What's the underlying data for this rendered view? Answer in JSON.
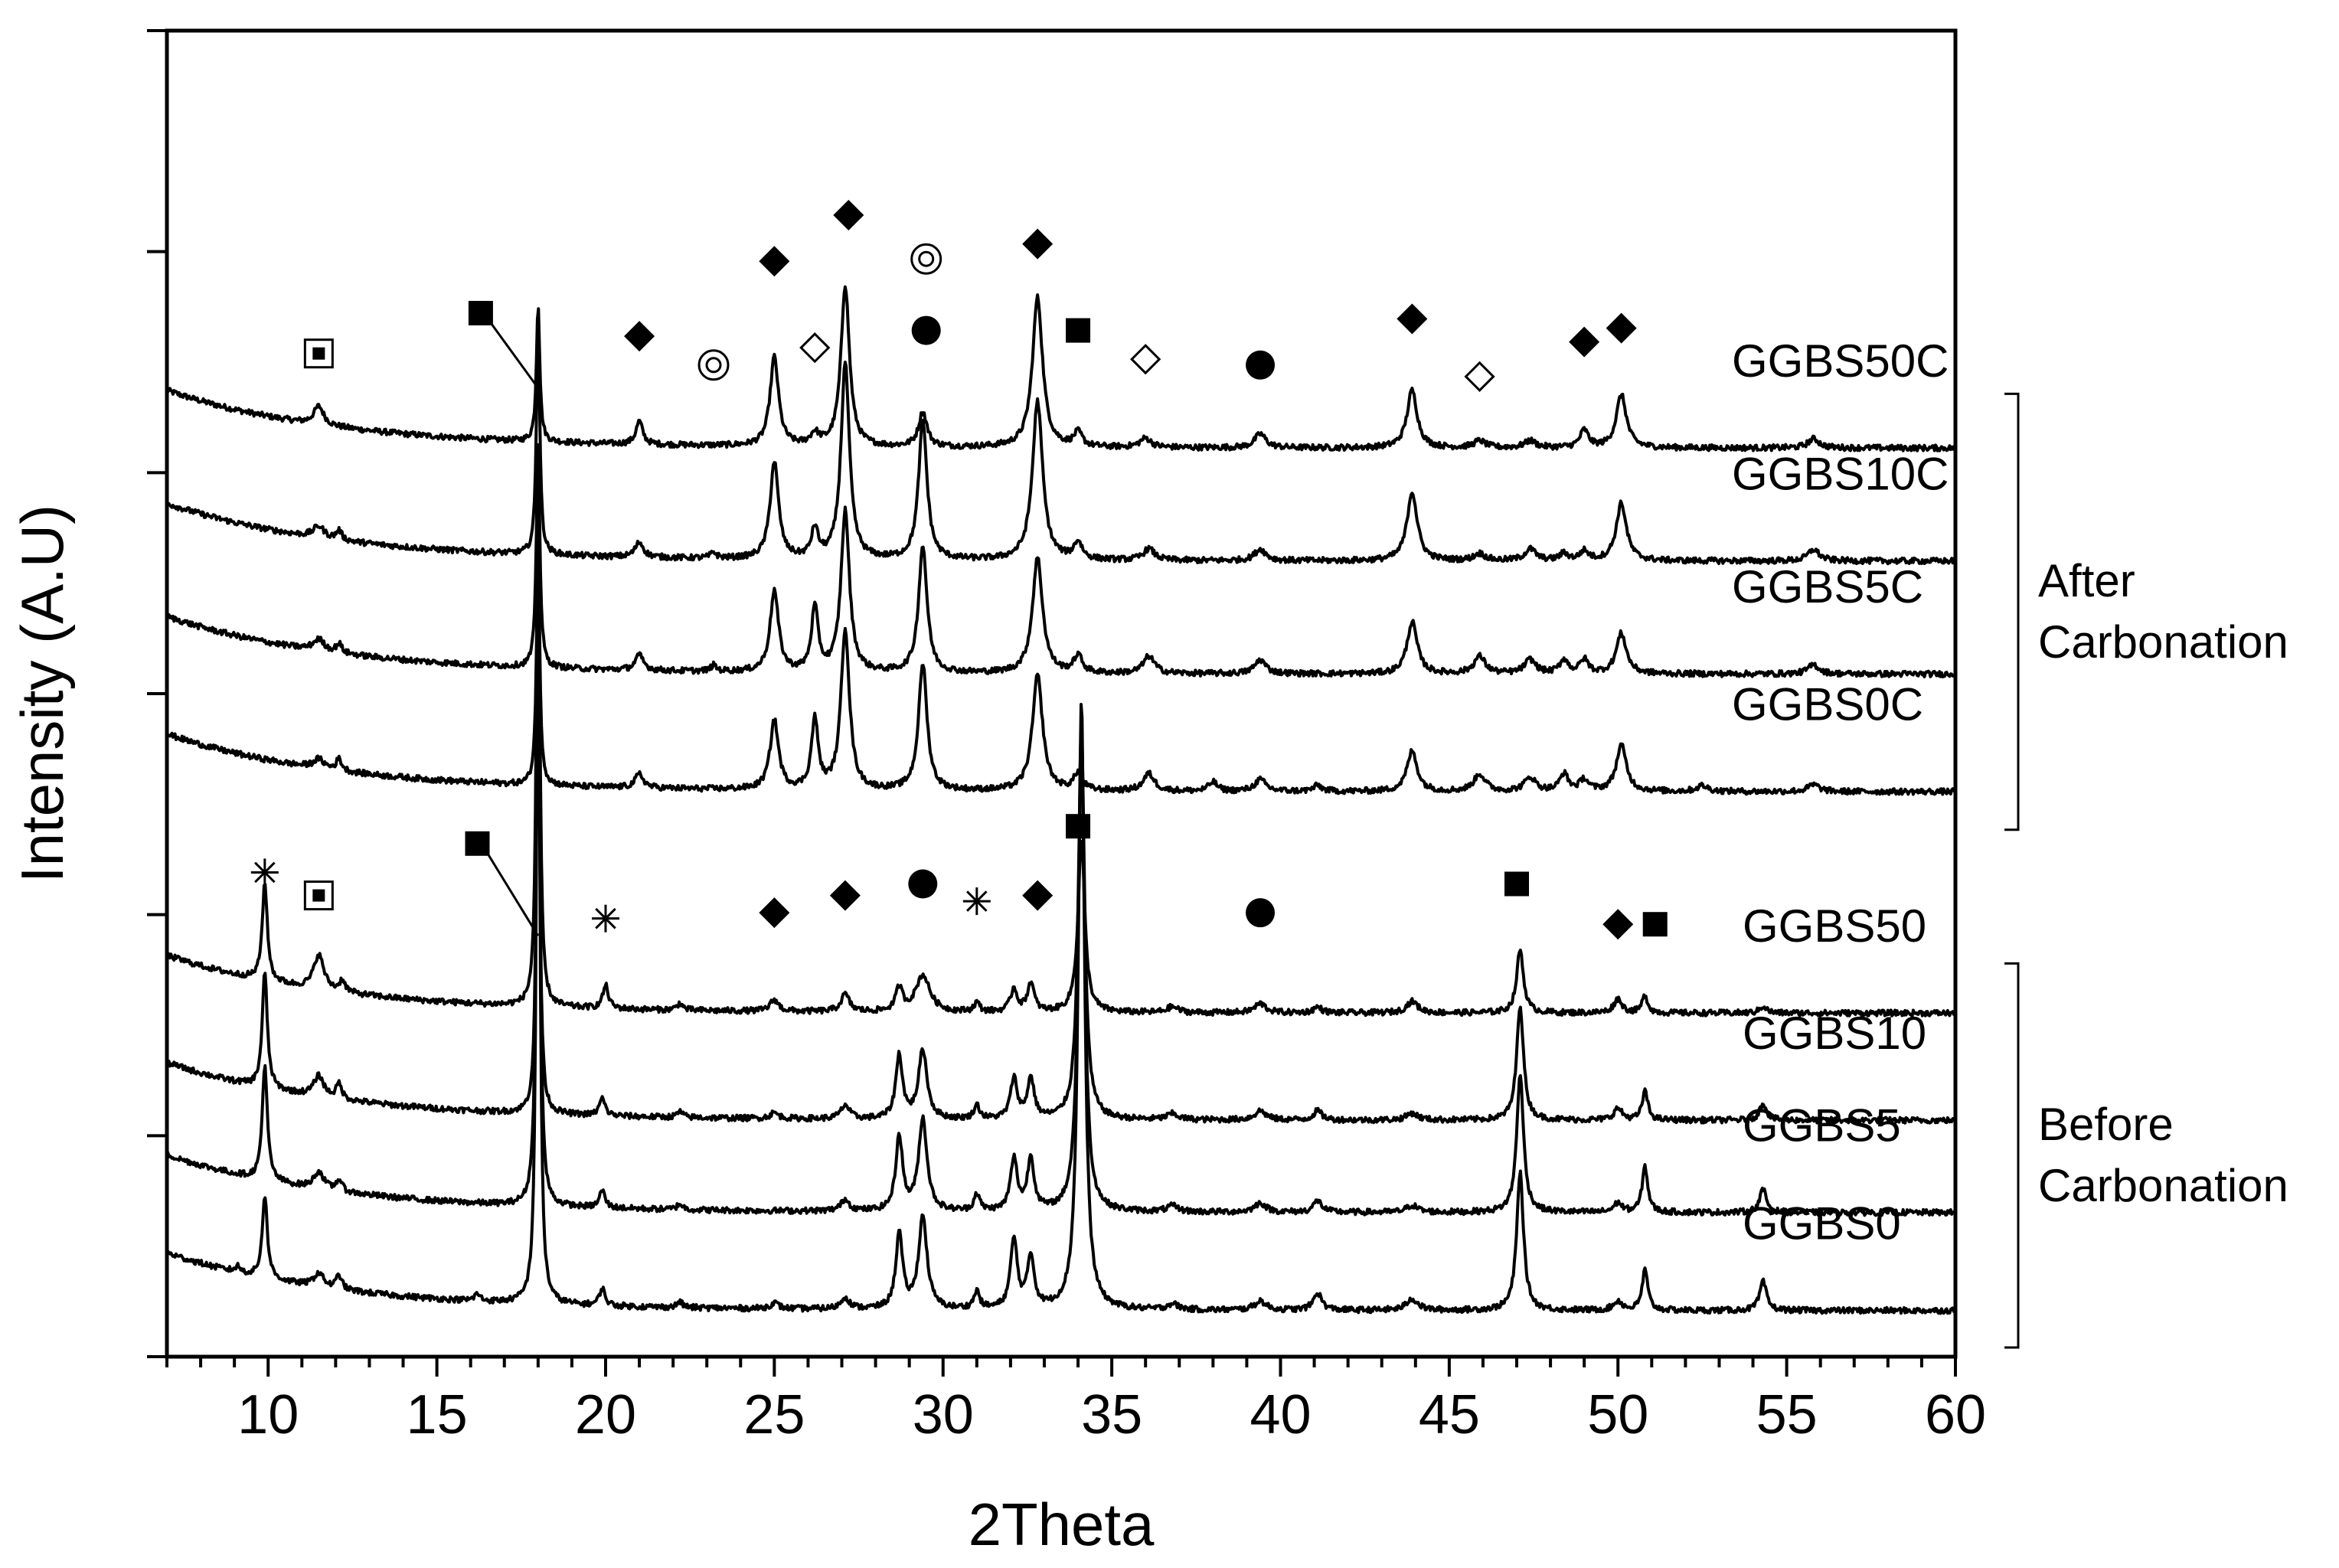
{
  "chart_data": {
    "type": "line",
    "xlabel": "2Theta",
    "ylabel": "Intensity (A.U)",
    "xlim": [
      7,
      60
    ],
    "x_ticks": [
      10,
      15,
      20,
      25,
      30,
      35,
      40,
      45,
      50,
      55,
      60
    ],
    "baseline_slope": 0.5,
    "colors": {
      "line": "#000000",
      "background": "#ffffff"
    },
    "groups": [
      {
        "label": "After Carbonation",
        "series": [
          "GGBS50C",
          "GGBS10C",
          "GGBS5C",
          "GGBS0C"
        ]
      },
      {
        "label": "Before Carbonation",
        "series": [
          "GGBS50",
          "GGBS10",
          "GGBS5",
          "GGBS0"
        ]
      }
    ],
    "series": [
      {
        "name": "GGBS50C",
        "group": "after",
        "offset": 7.48,
        "peaks": [
          [
            11.5,
            0.16,
            0.18
          ],
          [
            18.0,
            1.2,
            0.06
          ],
          [
            21.0,
            0.2,
            0.12
          ],
          [
            25.0,
            0.77,
            0.15
          ],
          [
            26.2,
            0.1,
            0.15
          ],
          [
            27.1,
            1.4,
            0.15
          ],
          [
            29.4,
            0.3,
            0.15
          ],
          [
            32.8,
            1.3,
            0.18
          ],
          [
            34.0,
            0.12,
            0.15
          ],
          [
            36.0,
            0.08,
            0.2
          ],
          [
            39.4,
            0.12,
            0.2
          ],
          [
            43.9,
            0.5,
            0.18
          ],
          [
            45.9,
            0.06,
            0.2
          ],
          [
            47.4,
            0.06,
            0.2
          ],
          [
            49.0,
            0.15,
            0.15
          ],
          [
            50.1,
            0.46,
            0.18
          ],
          [
            55.8,
            0.08,
            0.2
          ]
        ]
      },
      {
        "name": "GGBS10C",
        "group": "after",
        "offset": 6.5,
        "peaks": [
          [
            11.5,
            0.1,
            0.2
          ],
          [
            12.1,
            0.08,
            0.1
          ],
          [
            18.0,
            2.0,
            0.06
          ],
          [
            21.0,
            0.13,
            0.15
          ],
          [
            23.2,
            0.05,
            0.1
          ],
          [
            25.0,
            0.84,
            0.15
          ],
          [
            26.2,
            0.25,
            0.12
          ],
          [
            27.1,
            1.7,
            0.15
          ],
          [
            29.4,
            1.2,
            0.15
          ],
          [
            32.8,
            1.38,
            0.18
          ],
          [
            34.0,
            0.15,
            0.15
          ],
          [
            36.1,
            0.1,
            0.2
          ],
          [
            39.4,
            0.1,
            0.2
          ],
          [
            43.9,
            0.6,
            0.18
          ],
          [
            45.9,
            0.06,
            0.2
          ],
          [
            47.4,
            0.1,
            0.2
          ],
          [
            48.4,
            0.06,
            0.15
          ],
          [
            49.0,
            0.08,
            0.15
          ],
          [
            50.1,
            0.5,
            0.18
          ],
          [
            55.8,
            0.1,
            0.2
          ]
        ]
      },
      {
        "name": "GGBS5C",
        "group": "after",
        "offset": 5.52,
        "peaks": [
          [
            11.5,
            0.1,
            0.2
          ],
          [
            12.1,
            0.08,
            0.1
          ],
          [
            18.0,
            2.0,
            0.06
          ],
          [
            21.0,
            0.13,
            0.15
          ],
          [
            23.2,
            0.05,
            0.1
          ],
          [
            25.0,
            0.7,
            0.15
          ],
          [
            26.2,
            0.55,
            0.12
          ],
          [
            27.1,
            1.4,
            0.15
          ],
          [
            29.4,
            1.1,
            0.15
          ],
          [
            32.8,
            1.0,
            0.18
          ],
          [
            34.0,
            0.15,
            0.15
          ],
          [
            36.1,
            0.15,
            0.2
          ],
          [
            39.4,
            0.12,
            0.2
          ],
          [
            43.9,
            0.45,
            0.18
          ],
          [
            45.9,
            0.15,
            0.2
          ],
          [
            47.4,
            0.12,
            0.2
          ],
          [
            48.4,
            0.12,
            0.15
          ],
          [
            49.0,
            0.12,
            0.15
          ],
          [
            50.1,
            0.35,
            0.18
          ],
          [
            55.8,
            0.08,
            0.2
          ]
        ]
      },
      {
        "name": "GGBS0C",
        "group": "after",
        "offset": 4.5,
        "peaks": [
          [
            11.5,
            0.08,
            0.2
          ],
          [
            12.1,
            0.1,
            0.1
          ],
          [
            18.0,
            2.0,
            0.06
          ],
          [
            21.0,
            0.12,
            0.15
          ],
          [
            25.0,
            0.6,
            0.15
          ],
          [
            26.2,
            0.6,
            0.12
          ],
          [
            27.1,
            1.4,
            0.15
          ],
          [
            29.4,
            1.1,
            0.15
          ],
          [
            32.8,
            1.0,
            0.18
          ],
          [
            34.0,
            0.15,
            0.15
          ],
          [
            36.1,
            0.15,
            0.2
          ],
          [
            38.0,
            0.08,
            0.15
          ],
          [
            39.4,
            0.1,
            0.2
          ],
          [
            41.1,
            0.05,
            0.15
          ],
          [
            43.9,
            0.35,
            0.18
          ],
          [
            45.9,
            0.15,
            0.2
          ],
          [
            47.4,
            0.12,
            0.2
          ],
          [
            48.4,
            0.15,
            0.15
          ],
          [
            49.0,
            0.1,
            0.15
          ],
          [
            50.1,
            0.4,
            0.18
          ],
          [
            52.5,
            0.05,
            0.2
          ],
          [
            55.8,
            0.06,
            0.2
          ]
        ]
      },
      {
        "name": "GGBS50",
        "group": "before",
        "offset": 2.58,
        "peaks": [
          [
            9.9,
            0.85,
            0.09
          ],
          [
            11.5,
            0.3,
            0.18
          ],
          [
            12.2,
            0.1,
            0.1
          ],
          [
            18.0,
            4.7,
            0.06
          ],
          [
            20.0,
            0.2,
            0.1
          ],
          [
            22.2,
            0.06,
            0.1
          ],
          [
            25.0,
            0.1,
            0.15
          ],
          [
            27.1,
            0.15,
            0.15
          ],
          [
            28.7,
            0.2,
            0.12
          ],
          [
            29.4,
            0.32,
            0.25
          ],
          [
            31.0,
            0.08,
            0.1
          ],
          [
            32.1,
            0.2,
            0.12
          ],
          [
            32.6,
            0.25,
            0.12
          ],
          [
            34.1,
            1.5,
            0.12
          ],
          [
            36.8,
            0.05,
            0.2
          ],
          [
            39.4,
            0.08,
            0.2
          ],
          [
            41.1,
            0.05,
            0.15
          ],
          [
            43.9,
            0.1,
            0.2
          ],
          [
            47.1,
            0.55,
            0.12
          ],
          [
            50.0,
            0.12,
            0.15
          ],
          [
            50.8,
            0.15,
            0.1
          ],
          [
            54.3,
            0.06,
            0.12
          ]
        ]
      },
      {
        "name": "GGBS10",
        "group": "before",
        "offset": 1.65,
        "peaks": [
          [
            9.9,
            1.0,
            0.09
          ],
          [
            11.5,
            0.18,
            0.18
          ],
          [
            12.1,
            0.13,
            0.1
          ],
          [
            18.0,
            4.0,
            0.06
          ],
          [
            19.9,
            0.15,
            0.1
          ],
          [
            22.2,
            0.05,
            0.1
          ],
          [
            25.0,
            0.05,
            0.15
          ],
          [
            27.1,
            0.12,
            0.15
          ],
          [
            28.7,
            0.55,
            0.12
          ],
          [
            29.4,
            0.6,
            0.15
          ],
          [
            31.0,
            0.12,
            0.1
          ],
          [
            32.1,
            0.35,
            0.12
          ],
          [
            32.6,
            0.35,
            0.12
          ],
          [
            34.1,
            3.4,
            0.11
          ],
          [
            36.8,
            0.05,
            0.2
          ],
          [
            39.4,
            0.08,
            0.2
          ],
          [
            41.1,
            0.08,
            0.15
          ],
          [
            43.9,
            0.06,
            0.2
          ],
          [
            47.1,
            1.0,
            0.12
          ],
          [
            50.0,
            0.1,
            0.15
          ],
          [
            50.8,
            0.25,
            0.1
          ],
          [
            54.3,
            0.15,
            0.12
          ]
        ]
      },
      {
        "name": "GGBS5",
        "group": "before",
        "offset": 0.85,
        "peaks": [
          [
            9.9,
            1.0,
            0.09
          ],
          [
            11.5,
            0.15,
            0.18
          ],
          [
            12.1,
            0.1,
            0.1
          ],
          [
            18.0,
            5.6,
            0.06
          ],
          [
            19.9,
            0.15,
            0.1
          ],
          [
            22.2,
            0.05,
            0.1
          ],
          [
            27.1,
            0.1,
            0.15
          ],
          [
            28.7,
            0.65,
            0.12
          ],
          [
            29.4,
            0.8,
            0.15
          ],
          [
            31.0,
            0.15,
            0.1
          ],
          [
            32.1,
            0.45,
            0.12
          ],
          [
            32.6,
            0.45,
            0.12
          ],
          [
            34.1,
            4.2,
            0.11
          ],
          [
            36.8,
            0.05,
            0.2
          ],
          [
            39.4,
            0.08,
            0.2
          ],
          [
            41.1,
            0.1,
            0.15
          ],
          [
            43.9,
            0.06,
            0.2
          ],
          [
            47.1,
            1.2,
            0.12
          ],
          [
            50.0,
            0.08,
            0.15
          ],
          [
            50.8,
            0.4,
            0.1
          ],
          [
            54.3,
            0.2,
            0.12
          ]
        ]
      },
      {
        "name": "GGBS0",
        "group": "before",
        "offset": 0.0,
        "peaks": [
          [
            9.1,
            0.05,
            0.1
          ],
          [
            9.9,
            0.72,
            0.09
          ],
          [
            11.5,
            0.12,
            0.18
          ],
          [
            12.1,
            0.12,
            0.1
          ],
          [
            16.2,
            0.06,
            0.1
          ],
          [
            18.0,
            6.56,
            0.06
          ],
          [
            19.9,
            0.15,
            0.1
          ],
          [
            22.2,
            0.05,
            0.1
          ],
          [
            25.0,
            0.05,
            0.15
          ],
          [
            27.1,
            0.1,
            0.15
          ],
          [
            28.7,
            0.65,
            0.12
          ],
          [
            29.4,
            0.8,
            0.15
          ],
          [
            31.0,
            0.15,
            0.1
          ],
          [
            32.1,
            0.6,
            0.12
          ],
          [
            32.6,
            0.45,
            0.12
          ],
          [
            34.1,
            5.3,
            0.11
          ],
          [
            36.8,
            0.05,
            0.2
          ],
          [
            39.4,
            0.08,
            0.2
          ],
          [
            41.1,
            0.15,
            0.15
          ],
          [
            43.9,
            0.1,
            0.2
          ],
          [
            47.1,
            1.2,
            0.12
          ],
          [
            50.0,
            0.08,
            0.15
          ],
          [
            50.8,
            0.35,
            0.1
          ],
          [
            54.3,
            0.25,
            0.12
          ]
        ]
      }
    ],
    "annotations": [
      {
        "symbol": "dotted-square",
        "x": 11.5,
        "y": 8.3
      },
      {
        "symbol": "filled-square",
        "x": 16.3,
        "y": 8.65,
        "leader_to": [
          18.0,
          8.0
        ]
      },
      {
        "symbol": "filled-diamond",
        "x": 21.0,
        "y": 8.45
      },
      {
        "symbol": "double-circle",
        "x": 23.2,
        "y": 8.2
      },
      {
        "symbol": "filled-diamond",
        "x": 25.0,
        "y": 9.1
      },
      {
        "symbol": "open-diamond",
        "x": 26.2,
        "y": 8.35
      },
      {
        "symbol": "filled-diamond",
        "x": 27.2,
        "y": 9.5
      },
      {
        "symbol": "double-circle",
        "x": 29.5,
        "y": 9.12
      },
      {
        "symbol": "filled-circle",
        "x": 29.5,
        "y": 8.5
      },
      {
        "symbol": "filled-diamond",
        "x": 32.8,
        "y": 9.25
      },
      {
        "symbol": "filled-square",
        "x": 34.0,
        "y": 8.5
      },
      {
        "symbol": "open-diamond",
        "x": 36.0,
        "y": 8.25
      },
      {
        "symbol": "filled-circle",
        "x": 39.4,
        "y": 8.2
      },
      {
        "symbol": "filled-diamond",
        "x": 43.9,
        "y": 8.6
      },
      {
        "symbol": "open-diamond",
        "x": 45.9,
        "y": 8.1
      },
      {
        "symbol": "filled-diamond",
        "x": 49.0,
        "y": 8.4
      },
      {
        "symbol": "filled-diamond",
        "x": 50.1,
        "y": 8.52
      },
      {
        "symbol": "asterisk",
        "x": 9.9,
        "y": 3.8
      },
      {
        "symbol": "dotted-square",
        "x": 11.5,
        "y": 3.6
      },
      {
        "symbol": "filled-square",
        "x": 16.2,
        "y": 4.05,
        "leader_to": [
          18.0,
          3.25
        ]
      },
      {
        "symbol": "asterisk",
        "x": 20.0,
        "y": 3.4
      },
      {
        "symbol": "filled-diamond",
        "x": 25.0,
        "y": 3.45
      },
      {
        "symbol": "filled-diamond",
        "x": 27.1,
        "y": 3.6
      },
      {
        "symbol": "filled-circle",
        "x": 29.4,
        "y": 3.7
      },
      {
        "symbol": "asterisk",
        "x": 31.0,
        "y": 3.55
      },
      {
        "symbol": "filled-diamond",
        "x": 32.8,
        "y": 3.6
      },
      {
        "symbol": "filled-square",
        "x": 34.0,
        "y": 4.2
      },
      {
        "symbol": "filled-circle",
        "x": 39.4,
        "y": 3.45
      },
      {
        "symbol": "filled-square",
        "x": 47.0,
        "y": 3.7
      },
      {
        "symbol": "filled-diamond",
        "x": 50.0,
        "y": 3.35
      },
      {
        "symbol": "filled-square",
        "x": 51.1,
        "y": 3.35
      }
    ]
  }
}
